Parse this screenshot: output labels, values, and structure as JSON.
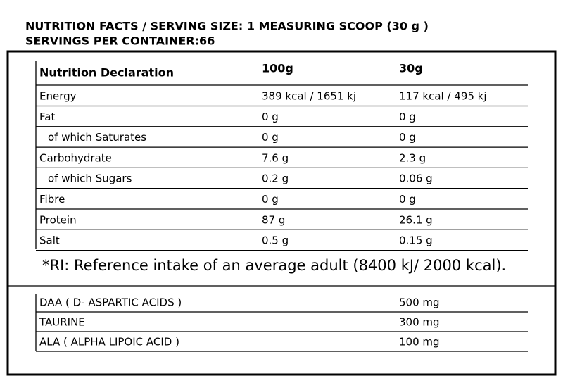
{
  "header": {
    "line1": "NUTRITION FACTS / SERVING SIZE: 1 MEASURING SCOOP (30 g )",
    "line2": "SERVINGS PER CONTAINER:66"
  },
  "table": {
    "columns": [
      "Nutrition Declaration",
      "100g",
      "30g"
    ],
    "rows": [
      [
        "Energy",
        "389 kcal / 1651 kj",
        "117 kcal / 495 kj"
      ],
      [
        "Fat",
        "0 g",
        "0 g"
      ],
      [
        "of which Saturates",
        "0 g",
        "0 g"
      ],
      [
        "Carbohydrate",
        "7.6 g",
        "2.3 g"
      ],
      [
        "of which Sugars",
        "0.2 g",
        "0.06 g"
      ],
      [
        "Fibre",
        "0 g",
        "0 g"
      ],
      [
        "Protein",
        "87 g",
        "26.1 g"
      ],
      [
        "Salt",
        "0.5 g",
        "0.15 g"
      ]
    ]
  },
  "footnote": "*RI: Reference intake of an average adult (8400 kJ/ 2000 kcal).",
  "extras": {
    "rows": [
      [
        "DAA ( D- ASPARTIC ACIDS )",
        "500 mg"
      ],
      [
        "TAURINE",
        "300 mg"
      ],
      [
        "ALA ( ALPHA LIPOIC ACID )",
        "100 mg"
      ]
    ]
  }
}
